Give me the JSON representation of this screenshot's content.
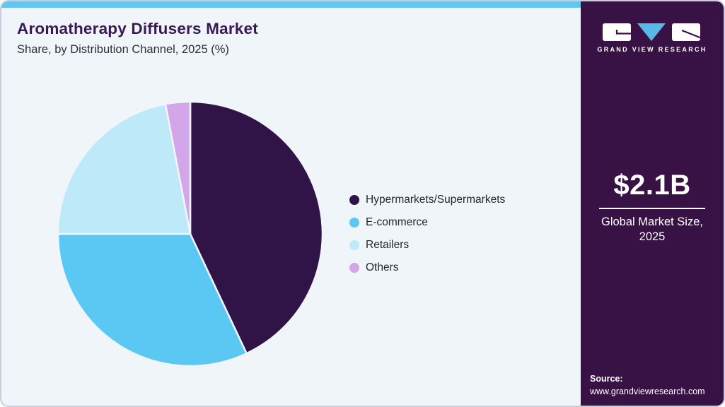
{
  "header": {
    "title": "Aromatherapy Diffusers Market",
    "subtitle": "Share, by Distribution Channel, 2025 (%)"
  },
  "chart_data": {
    "type": "pie",
    "title": "Aromatherapy Diffusers Market Share, by Distribution Channel, 2025 (%)",
    "categories": [
      "Hypermarkets/Supermarkets",
      "E-commerce",
      "Retailers",
      "Others"
    ],
    "values": [
      43,
      32,
      22,
      3
    ],
    "unit": "%",
    "colors": [
      "#301347",
      "#5bc8f3",
      "#bde9f8",
      "#d3a6e9"
    ],
    "legend_position": "right",
    "start_angle_deg": 0,
    "direction": "clockwise"
  },
  "sidebar": {
    "logo_text": "GRAND VIEW RESEARCH",
    "market_size": "$2.1B",
    "market_label": "Global Market Size, 2025",
    "source_label": "Source:",
    "source_url": "www.grandviewresearch.com"
  },
  "theme": {
    "accent_blue": "#62c6f0",
    "panel_purple": "#381245",
    "title_purple": "#3a1a52",
    "card_background": "#f0f5fa"
  }
}
